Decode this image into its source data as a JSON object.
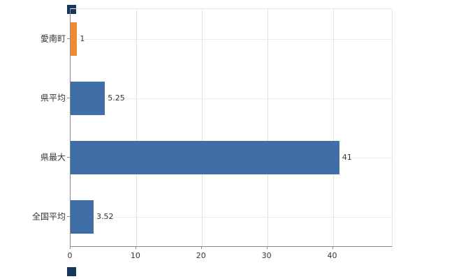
{
  "chart_data": {
    "type": "bar",
    "orientation": "horizontal",
    "title": "",
    "xlabel": "",
    "ylabel": "",
    "categories": [
      "愛南町",
      "県平均",
      "県最大",
      "全国平均"
    ],
    "values": [
      1,
      5.25,
      41,
      3.52
    ],
    "value_labels": [
      "1",
      "5.25",
      "41",
      "3.52"
    ],
    "bar_colors": [
      "#ef8b2f",
      "#3f6fa6",
      "#3f6fa6",
      "#3f6fa6"
    ],
    "xticks": [
      0,
      10,
      20,
      30,
      40
    ],
    "xtick_labels": [
      "0",
      "10",
      "20",
      "30",
      "40"
    ],
    "xlim": [
      0,
      49
    ],
    "grid": "vertical-and-horizontal",
    "legend": "none"
  },
  "colors": {
    "bar_blue": "#3f6fa6",
    "bar_orange": "#ef8b2f",
    "axis": "#8a8a8a",
    "gridline": "#e2e2e2",
    "corner_marker": "#17365d",
    "background": "#ffffff",
    "text": "#333333"
  }
}
